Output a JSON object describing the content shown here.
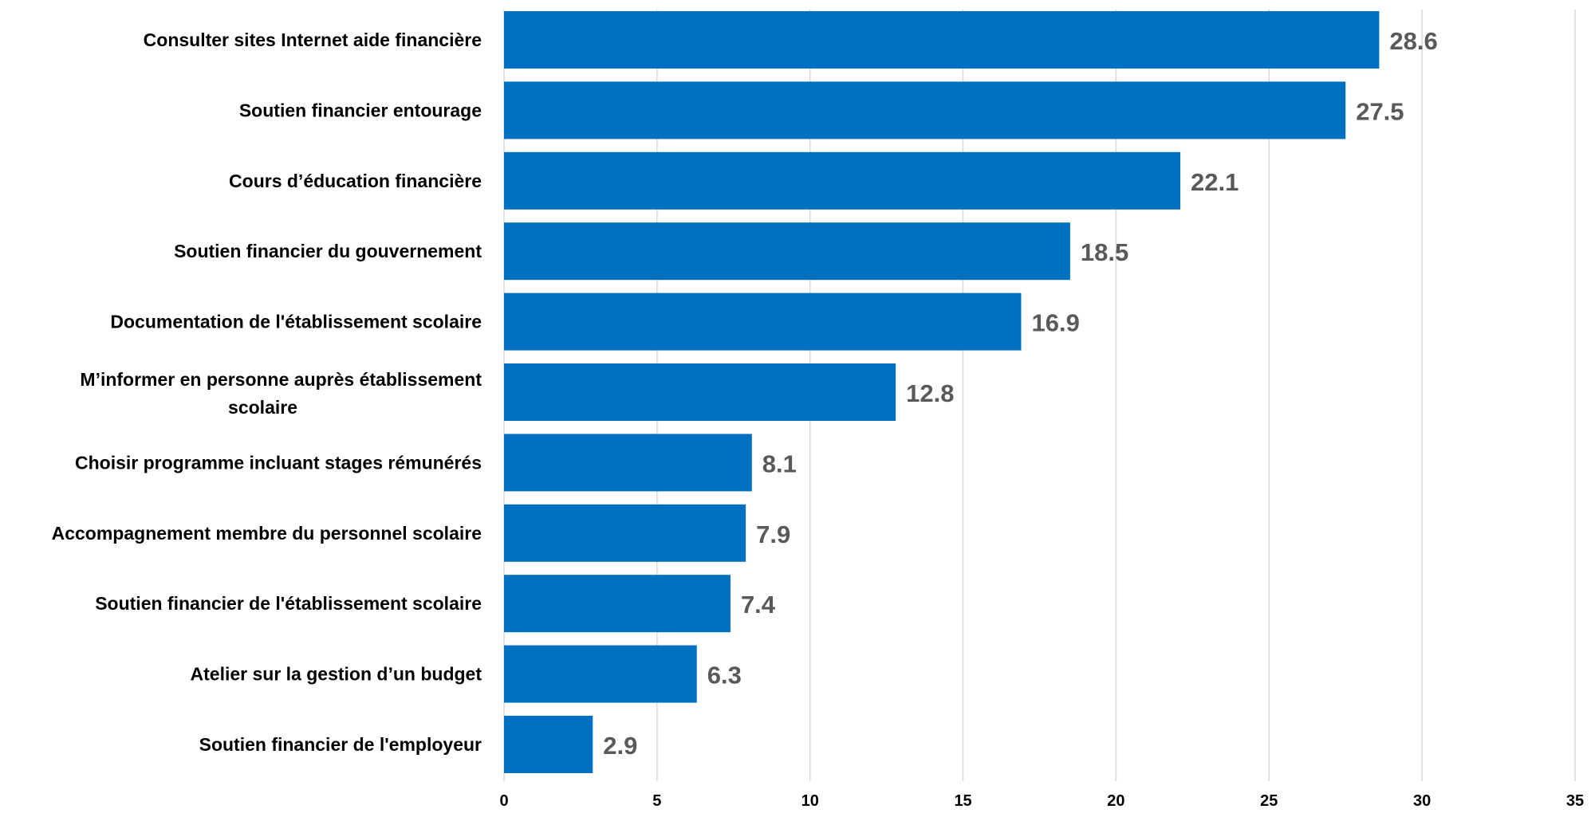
{
  "chart_data": {
    "type": "bar",
    "orientation": "horizontal",
    "categories": [
      "Consulter sites Internet aide financière",
      "Soutien financier entourage",
      "Cours d’éducation financière",
      "Soutien financier du gouvernement",
      "Documentation de l'établissement scolaire",
      "M’informer en personne auprès établissement scolaire",
      "Choisir programme incluant stages rémunérés",
      "Accompagnement membre du personnel scolaire",
      "Soutien financier de l'établissement scolaire",
      "Atelier sur la gestion d’un budget",
      "Soutien financier de l'employeur"
    ],
    "values": [
      28.6,
      27.5,
      22.1,
      18.5,
      16.9,
      12.8,
      8.1,
      7.9,
      7.4,
      6.3,
      2.9
    ],
    "value_labels": [
      "28.6",
      "27.5",
      "22.1",
      "18.5",
      "16.9",
      "12.8",
      "8.1",
      "7.9",
      "7.4",
      "6.3",
      "2.9"
    ],
    "xlim": [
      0,
      35
    ],
    "x_ticks": [
      0,
      5,
      10,
      15,
      20,
      25,
      30,
      35
    ],
    "x_tick_labels": [
      "0",
      "5",
      "10",
      "15",
      "20",
      "25",
      "30",
      "35"
    ],
    "title": "",
    "xlabel": "",
    "ylabel": "",
    "grid": true,
    "legend": "none",
    "bar_color": "#0070c0"
  }
}
